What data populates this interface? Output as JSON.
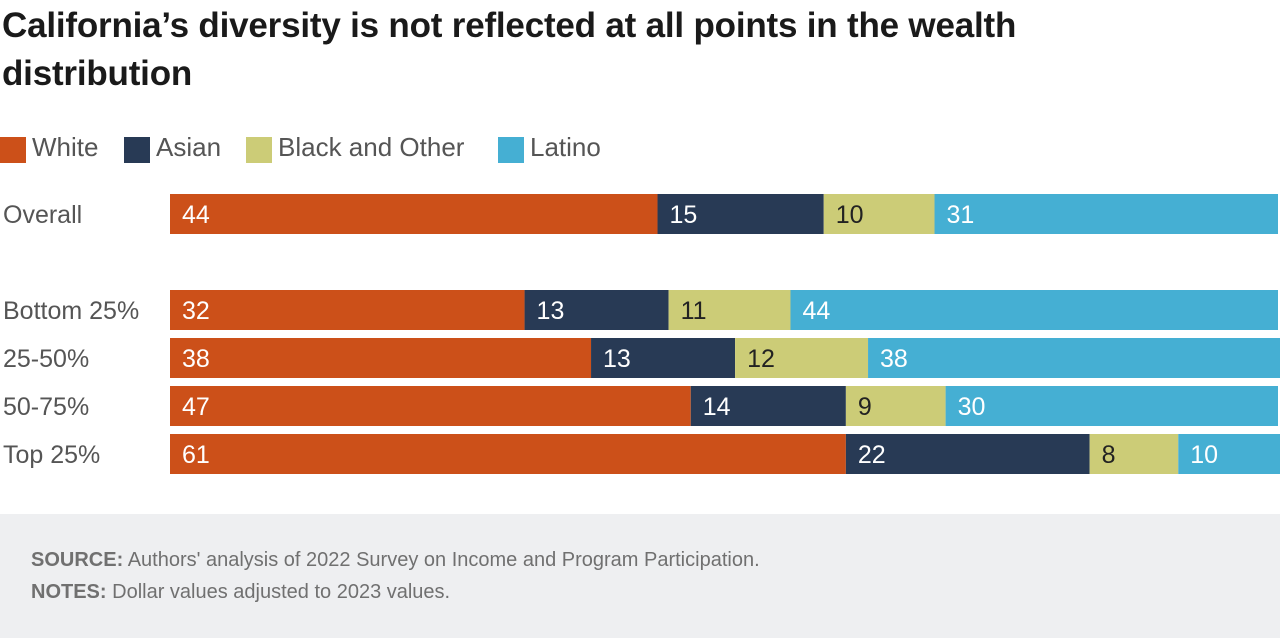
{
  "title": "California’s diversity is not reflected at all points in the wealth distribution",
  "colors": {
    "white": "#cc5019",
    "asian": "#283a55",
    "black_other": "#cccc77",
    "latino": "#45afd3"
  },
  "legend": [
    {
      "label": "White",
      "color": "#cc5019"
    },
    {
      "label": "Asian",
      "color": "#283a55"
    },
    {
      "label": "Black and Other",
      "color": "#cccc77"
    },
    {
      "label": "Latino",
      "color": "#45afd3"
    }
  ],
  "chart_data": {
    "type": "bar",
    "orientation": "horizontal",
    "stacked": true,
    "categories": [
      "Overall",
      "Bottom 25%",
      "25-50%",
      "50-75%",
      "Top 25%"
    ],
    "series": [
      {
        "name": "White",
        "values": [
          44,
          32,
          38,
          47,
          61
        ]
      },
      {
        "name": "Asian",
        "values": [
          15,
          13,
          13,
          14,
          22
        ]
      },
      {
        "name": "Black and Other",
        "values": [
          10,
          11,
          12,
          9,
          8
        ]
      },
      {
        "name": "Latino",
        "values": [
          31,
          44,
          38,
          30,
          10
        ]
      }
    ],
    "xlim": [
      0,
      100
    ],
    "grid": false,
    "legend_position": "top-left",
    "data_labels": true
  },
  "footer": {
    "source_label": "SOURCE:",
    "source_text": "Authors' analysis of 2022 Survey on Income and Program Participation.",
    "notes_label": "NOTES:",
    "notes_text": "Dollar values adjusted to 2023 values."
  }
}
